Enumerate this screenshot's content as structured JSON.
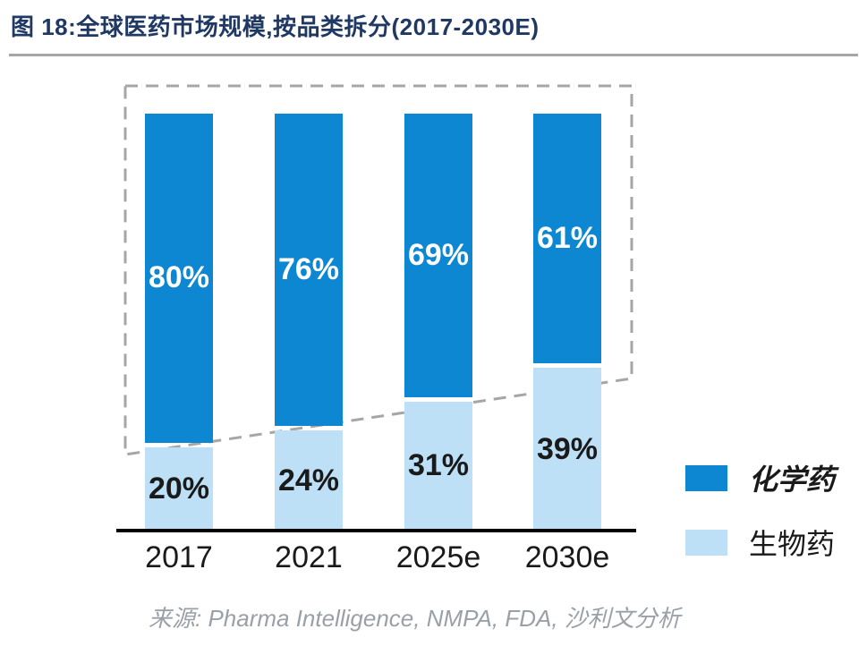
{
  "header": {
    "title": "图 18:全球医药市场规模,按品类拆分(2017-2030E)"
  },
  "chart_data": {
    "type": "bar",
    "stacked": true,
    "title": "全球医药市场规模,按品类拆分(2017-2030E)",
    "categories": [
      "2017",
      "2021",
      "2025e",
      "2030e"
    ],
    "series": [
      {
        "name": "化学药",
        "values": [
          80,
          76,
          69,
          61
        ],
        "color": "#0E87D2",
        "label_color": "#FFFFFF"
      },
      {
        "name": "生物药",
        "values": [
          20,
          24,
          31,
          39
        ],
        "color": "#BDE0F7",
        "label_color": "#1A1A1A"
      }
    ],
    "label_format": "percent",
    "ylim": [
      0,
      100
    ],
    "grid": false,
    "legend_position": "right",
    "annotation": "dashed gray border outlines the chemical-drug share, shrinking from 80% in 2017 to 61% in 2030e"
  },
  "legend": {
    "items": [
      {
        "label": "化学药"
      },
      {
        "label": "生物药"
      }
    ]
  },
  "footer": {
    "source": "来源: Pharma Intelligence, NMPA, FDA, 沙利文分析"
  },
  "colors": {
    "chem": "#0E87D2",
    "bio": "#BDE0F7",
    "title_text": "#1F3864",
    "dashed_border": "#A6A6A6",
    "axis": "#000000",
    "source_text": "#9AA0A8"
  }
}
